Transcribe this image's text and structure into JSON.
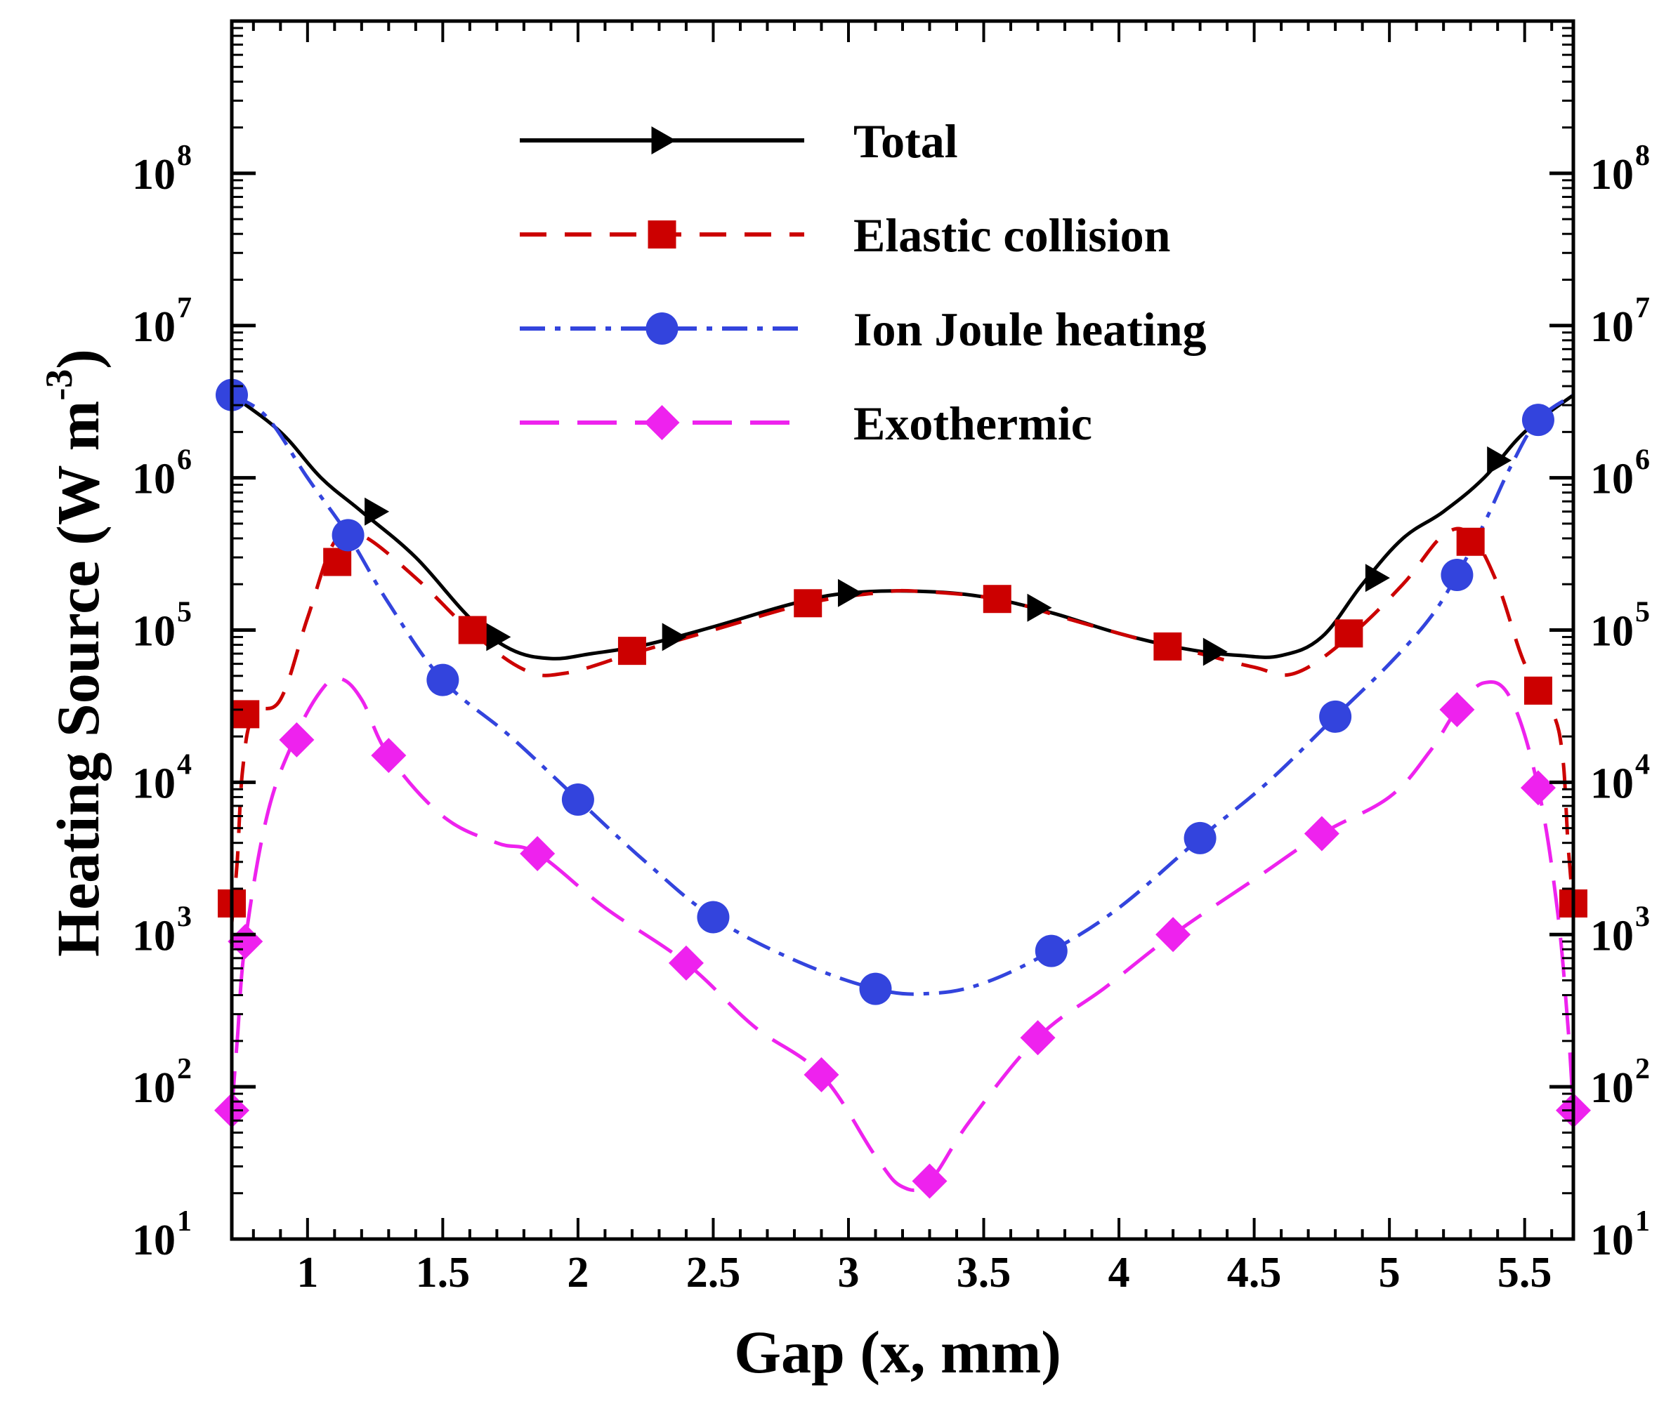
{
  "chart_data": {
    "type": "line",
    "title": "",
    "xlabel": "Gap (x, mm)",
    "ylabel": "Heating Source (W m",
    "ylabel_exp": "-3",
    "y_scale": "log",
    "xlim": [
      0.72,
      5.68
    ],
    "ylim": [
      10,
      1000000000
    ],
    "x_ticks": [
      1,
      1.5,
      2,
      2.5,
      3,
      3.5,
      4,
      4.5,
      5,
      5.5
    ],
    "x_tick_labels": [
      "1",
      "1.5",
      "2",
      "2.5",
      "3",
      "3.5",
      "4",
      "4.5",
      "5",
      "5.5"
    ],
    "y_ticks": [
      10,
      100,
      1000,
      10000,
      100000,
      1000000,
      10000000,
      100000000
    ],
    "y_tick_bases": [
      "10",
      "10",
      "10",
      "10",
      "10",
      "10",
      "10",
      "10"
    ],
    "y_tick_exponents": [
      "1",
      "2",
      "3",
      "4",
      "5",
      "6",
      "7",
      "8"
    ],
    "grid": false,
    "legend_position": "top-center",
    "series": [
      {
        "name": "Total",
        "color": "#000000",
        "dash": "solid",
        "marker": "triangle-right",
        "curve_x": [
          0.72,
          0.9,
          1.05,
          1.2,
          1.4,
          1.6,
          1.75,
          1.9,
          2.05,
          2.25,
          2.5,
          2.8,
          3.0,
          3.25,
          3.5,
          3.75,
          4.0,
          4.25,
          4.45,
          4.6,
          4.75,
          4.9,
          5.05,
          5.2,
          5.35,
          5.5,
          5.68
        ],
        "curve_y": [
          3500000,
          2000000,
          1000000,
          600000,
          300000,
          120000,
          75000,
          65000,
          70000,
          80000,
          105000,
          150000,
          175000,
          180000,
          165000,
          130000,
          95000,
          75000,
          68000,
          68000,
          90000,
          200000,
          400000,
          600000,
          1000000,
          2000000,
          3500000
        ],
        "marker_x": [
          1.25,
          1.7,
          2.35,
          3.0,
          3.7,
          4.35,
          4.95,
          5.4
        ],
        "marker_y": [
          600000,
          90000,
          90000,
          175000,
          140000,
          72000,
          220000,
          1300000
        ]
      },
      {
        "name": "Elastic collision",
        "color": "#cc0000",
        "dash": "dashed",
        "marker": "square",
        "curve_x": [
          0.72,
          0.74,
          0.76,
          0.8,
          0.9,
          1.0,
          1.1,
          1.2,
          1.4,
          1.6,
          1.8,
          1.95,
          2.2,
          2.5,
          2.85,
          3.1,
          3.25,
          3.55,
          3.8,
          4.1,
          4.3,
          4.5,
          4.65,
          4.85,
          5.05,
          5.2,
          5.3,
          5.4,
          5.5,
          5.6,
          5.64,
          5.66,
          5.68
        ],
        "curve_y": [
          1200,
          3000,
          12000,
          28000,
          35000,
          120000,
          380000,
          420000,
          220000,
          100000,
          55000,
          52000,
          70000,
          100000,
          150000,
          175000,
          180000,
          160000,
          120000,
          85000,
          70000,
          57000,
          52000,
          90000,
          200000,
          420000,
          420000,
          200000,
          60000,
          30000,
          15000,
          4000,
          1500
        ],
        "marker_x": [
          0.72,
          0.77,
          1.11,
          1.61,
          2.2,
          2.85,
          3.55,
          4.18,
          4.85,
          5.3,
          5.55,
          5.68
        ],
        "marker_y": [
          1600,
          28000,
          280000,
          100000,
          73000,
          150000,
          160000,
          78000,
          95000,
          380000,
          40000,
          1600
        ]
      },
      {
        "name": "Ion Joule heating",
        "color": "#3344dd",
        "dash": "dashdot",
        "marker": "circle",
        "curve_x": [
          0.72,
          0.85,
          1.0,
          1.15,
          1.3,
          1.5,
          1.75,
          2.0,
          2.25,
          2.5,
          2.8,
          3.1,
          3.3,
          3.5,
          3.75,
          4.0,
          4.3,
          4.55,
          4.8,
          5.0,
          5.15,
          5.25,
          5.35,
          5.45,
          5.55,
          5.68
        ],
        "curve_y": [
          3500000,
          2500000,
          1000000,
          420000,
          150000,
          47000,
          20000,
          7700,
          3000,
          1300,
          680,
          440,
          410,
          480,
          780,
          1500,
          4300,
          10000,
          27000,
          60000,
          120000,
          230000,
          500000,
          1200000,
          2400000,
          3500000
        ],
        "marker_x": [
          0.72,
          1.15,
          1.5,
          2.0,
          2.5,
          3.1,
          3.75,
          4.3,
          4.8,
          5.25,
          5.55
        ],
        "marker_y": [
          3500000,
          420000,
          47000,
          7700,
          1300,
          440,
          780,
          4300,
          27000,
          230000,
          2400000
        ]
      },
      {
        "name": "Exothermic",
        "color": "#ee22ee",
        "dash": "longdash",
        "marker": "diamond",
        "curve_x": [
          0.72,
          0.74,
          0.77,
          0.85,
          0.95,
          1.05,
          1.12,
          1.2,
          1.3,
          1.5,
          1.7,
          1.85,
          2.1,
          2.4,
          2.65,
          2.9,
          3.1,
          3.2,
          3.3,
          3.45,
          3.7,
          3.95,
          4.2,
          4.5,
          4.75,
          5.0,
          5.15,
          5.25,
          5.35,
          5.45,
          5.55,
          5.62,
          5.66,
          5.68
        ],
        "curve_y": [
          70,
          200,
          900,
          6000,
          19000,
          40000,
          48000,
          35000,
          15000,
          6000,
          4000,
          3400,
          1500,
          650,
          250,
          120,
          35,
          22,
          24,
          60,
          210,
          450,
          1000,
          2300,
          4600,
          8000,
          16000,
          30000,
          45000,
          35000,
          9200,
          1500,
          250,
          70
        ],
        "marker_x": [
          0.72,
          0.77,
          0.96,
          1.3,
          1.85,
          2.4,
          2.9,
          3.3,
          3.7,
          4.2,
          4.75,
          5.25,
          5.55,
          5.68
        ],
        "marker_y": [
          70,
          900,
          19000,
          15000,
          3400,
          650,
          120,
          24,
          210,
          1000,
          4600,
          30000,
          9200,
          70
        ]
      }
    ]
  }
}
